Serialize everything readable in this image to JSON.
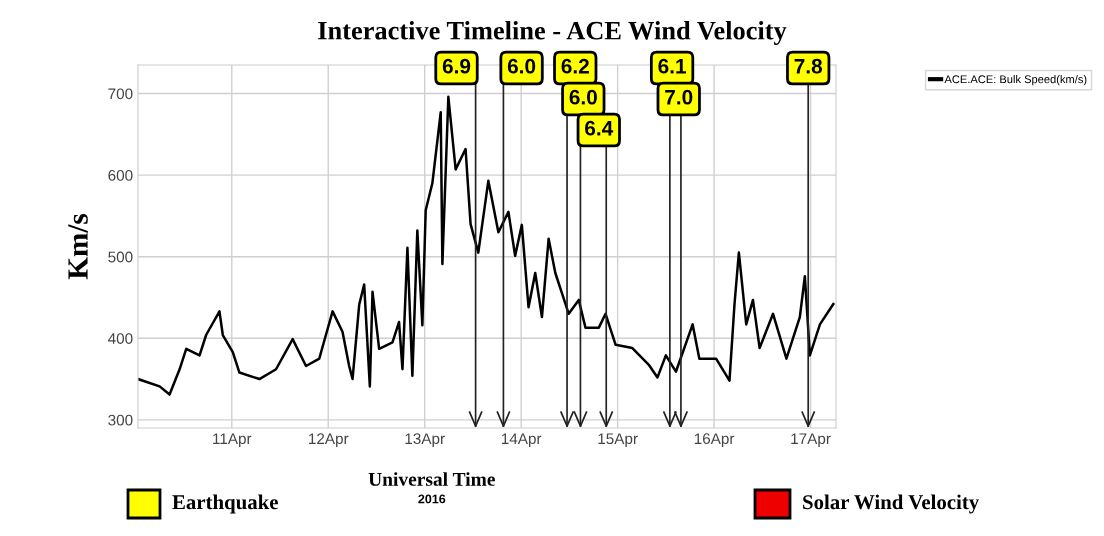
{
  "chart_data": {
    "type": "line",
    "title": "Interactive Timeline - ACE Wind Velocity",
    "xlabel": "Universal Time",
    "ylabel": "Km/s",
    "annotations": [
      "2016",
      "Earthquake",
      "Solar Wind Velocity"
    ],
    "x": [
      "2016-04-10T00:40",
      "2016-04-10T06:03",
      "2016-04-10T08:31",
      "2016-04-10T11:01",
      "2016-04-10T12:40",
      "2016-04-10T15:59",
      "2016-04-10T17:37",
      "2016-04-10T20:56",
      "2016-04-10T21:46",
      "2016-04-11T00:15",
      "2016-04-11T01:54",
      "2016-04-11T06:52",
      "2016-04-11T11:01",
      "2016-04-11T15:09",
      "2016-04-11T18:28",
      "2016-04-11T21:46",
      "2016-04-11T23:25",
      "2016-04-12T01:05",
      "2016-04-12T03:33",
      "2016-04-12T05:12",
      "2016-04-12T06:03",
      "2016-04-12T07:42",
      "2016-04-12T08:56",
      "2016-04-12T10:21",
      "2016-04-12T11:01",
      "2016-04-12T12:40",
      "2016-04-12T15:59",
      "2016-04-12T17:37",
      "2016-04-12T18:28",
      "2016-04-12T19:42",
      "2016-04-12T20:56",
      "2016-04-12T22:10",
      "2016-04-12T23:25",
      "2016-04-13T00:15",
      "2016-04-13T01:54",
      "2016-04-13T03:59",
      "2016-04-13T04:24",
      "2016-04-13T05:53",
      "2016-04-13T07:42",
      "2016-04-13T10:10",
      "2016-04-13T11:25",
      "2016-04-13T13:20",
      "2016-04-13T15:50",
      "2016-04-13T18:20",
      "2016-04-13T20:50",
      "2016-04-13T22:30",
      "2016-04-14T00:10",
      "2016-04-14T01:50",
      "2016-04-14T03:30",
      "2016-04-14T05:10",
      "2016-04-14T06:50",
      "2016-04-14T08:30",
      "2016-04-14T10:10",
      "2016-04-14T11:50",
      "2016-04-14T14:20",
      "2016-04-14T16:00",
      "2016-04-14T19:20",
      "2016-04-14T21:00",
      "2016-04-14T23:30",
      "2016-04-15T03:40",
      "2016-04-15T07:50",
      "2016-04-15T09:55",
      "2016-04-15T12:00",
      "2016-04-15T14:30",
      "2016-04-15T18:40",
      "2016-04-15T20:20",
      "2016-04-16T00:30",
      "2016-04-16T03:50",
      "2016-04-16T05:05",
      "2016-04-16T06:10",
      "2016-04-16T08:00",
      "2016-04-16T09:40",
      "2016-04-16T11:20",
      "2016-04-16T14:40",
      "2016-04-16T18:00",
      "2016-04-16T21:20",
      "2016-04-16T22:35",
      "2016-04-16T23:50",
      "2016-04-17T02:20",
      "2016-04-17T05:40"
    ],
    "series": [
      {
        "name": "ACE.ACE: Bulk Speed(km/s)",
        "color": "#000000",
        "values": [
          350,
          341,
          331,
          362,
          387,
          379,
          404,
          433,
          404,
          383,
          358,
          350,
          362,
          399,
          366,
          375,
          404,
          433,
          408,
          366,
          350,
          441,
          466,
          341,
          457,
          387,
          395,
          420,
          362,
          511,
          354,
          532,
          416,
          557,
          590,
          677,
          491,
          696,
          607,
          632,
          540,
          505,
          593,
          530,
          555,
          501,
          539,
          438,
          480,
          426,
          522,
          480,
          455,
          430,
          447,
          413,
          413,
          430,
          392,
          388,
          367,
          352,
          379,
          359,
          417,
          375,
          375,
          348,
          442,
          505,
          417,
          447,
          388,
          430,
          375,
          426,
          476,
          379,
          417,
          442
        ]
      }
    ],
    "xlim": [
      "2016-04-10T00:40",
      "2016-04-17T06:20"
    ],
    "xticks": [
      {
        "value": "2016-04-11",
        "label": "11Apr"
      },
      {
        "value": "2016-04-12",
        "label": "12Apr"
      },
      {
        "value": "2016-04-13",
        "label": "13Apr"
      },
      {
        "value": "2016-04-14",
        "label": "14Apr"
      },
      {
        "value": "2016-04-15",
        "label": "15Apr"
      },
      {
        "value": "2016-04-16",
        "label": "16Apr"
      },
      {
        "value": "2016-04-17",
        "label": "17Apr"
      }
    ],
    "ylim": [
      290,
      735
    ],
    "yticks": [
      300,
      400,
      500,
      600,
      700
    ],
    "ref_lines": [
      {
        "axis": "x",
        "value": "2016-04-13T12:40",
        "label": "6.9"
      },
      {
        "axis": "x",
        "value": "2016-04-13T19:35",
        "label": "6.0"
      },
      {
        "axis": "x",
        "value": "2016-04-14T11:25",
        "label": "6.2"
      },
      {
        "axis": "x",
        "value": "2016-04-14T14:45",
        "label": "6.0"
      },
      {
        "axis": "x",
        "value": "2016-04-14T21:10",
        "label": "6.4"
      },
      {
        "axis": "x",
        "value": "2016-04-15T13:00",
        "label": "6.1"
      },
      {
        "axis": "x",
        "value": "2016-04-15T15:45",
        "label": "7.0"
      },
      {
        "axis": "x",
        "value": "2016-04-16T23:25",
        "label": "7.8"
      }
    ],
    "grid": true,
    "legend": "right",
    "marker": "none",
    "line_style": "solid"
  }
}
